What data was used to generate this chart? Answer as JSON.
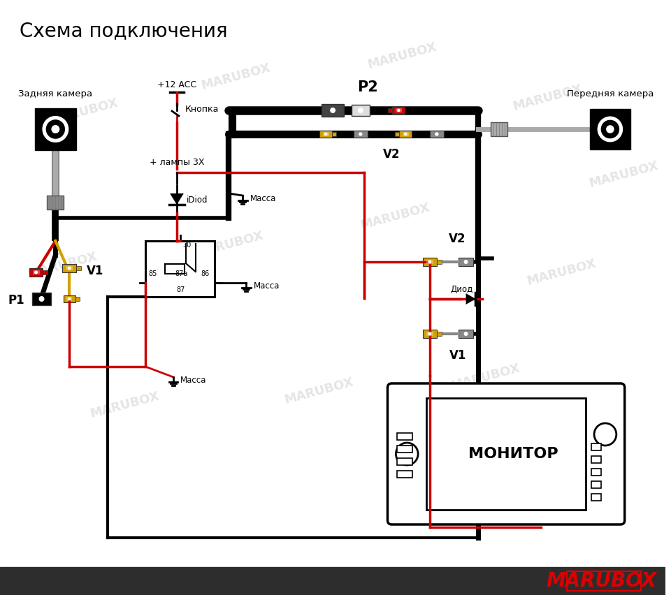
{
  "title": "Схема подключения",
  "title_fontsize": 20,
  "bg_color": "#ffffff",
  "footer_bg": "#2d2d2d",
  "footer_text": "MARUBOX",
  "watermark_text": "MARUBOX",
  "labels": {
    "rear_camera": "Задняя камера",
    "front_camera": "Передняя камера",
    "plus12acc": "+12 ACC",
    "button": "Кнопка",
    "lamp3x": "+ лампы 3Х",
    "idiod": "iDiod",
    "massa": "Масса",
    "diod": "Диод",
    "monitor": "МОНИТОР",
    "P1": "P1",
    "P2": "P2",
    "V1": "V1",
    "V2": "V2"
  },
  "colors": {
    "black": "#000000",
    "red": "#cc0000",
    "white": "#ffffff",
    "yellow": "#d4a000",
    "gray": "#999999",
    "lgray": "#cccccc",
    "footer_bg": "#2d2d2d"
  }
}
